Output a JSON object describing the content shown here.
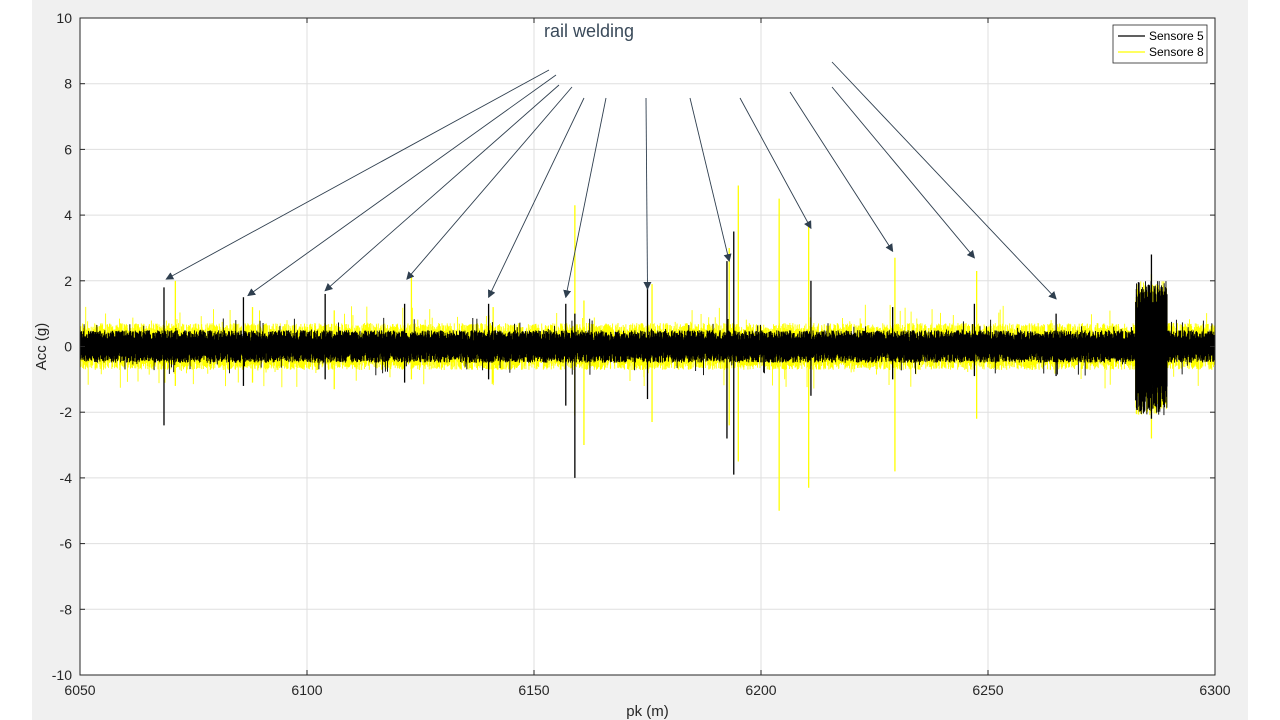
{
  "chart_data": {
    "type": "line",
    "title": "",
    "xlabel": "pk (m)",
    "ylabel": "Acc (g)",
    "xlim": [
      6050,
      6300
    ],
    "ylim": [
      -10,
      10
    ],
    "xticks": [
      6050,
      6100,
      6150,
      6200,
      6250,
      6300
    ],
    "yticks": [
      -10,
      -8,
      -6,
      -4,
      -2,
      0,
      2,
      4,
      6,
      8,
      10
    ],
    "grid": true,
    "legend_position": "top-right",
    "annotation": {
      "text": "rail welding",
      "arrow_targets_x": [
        6069,
        6087,
        6104,
        6122,
        6140,
        6157,
        6175,
        6193,
        6211,
        6229,
        6247,
        6265
      ]
    },
    "series": [
      {
        "name": "Sensore 5",
        "color": "#000000",
        "noise_amplitude": 0.45,
        "spikes": [
          {
            "x": 6068.5,
            "high": 1.8,
            "low": -2.4
          },
          {
            "x": 6086,
            "high": 1.5,
            "low": -1.2
          },
          {
            "x": 6104,
            "high": 1.6,
            "low": -1.0
          },
          {
            "x": 6121.5,
            "high": 1.3,
            "low": -1.1
          },
          {
            "x": 6140,
            "high": 1.3,
            "low": -1.0
          },
          {
            "x": 6157,
            "high": 1.3,
            "low": -1.8
          },
          {
            "x": 6159,
            "high": 1.0,
            "low": -4.0
          },
          {
            "x": 6175,
            "high": 1.8,
            "low": -1.6
          },
          {
            "x": 6192.5,
            "high": 2.6,
            "low": -2.8
          },
          {
            "x": 6194,
            "high": 3.5,
            "low": -3.9
          },
          {
            "x": 6211,
            "high": 2.0,
            "low": -1.5
          },
          {
            "x": 6229,
            "high": 1.2,
            "low": -1.0
          },
          {
            "x": 6247,
            "high": 1.3,
            "low": -0.9
          },
          {
            "x": 6265,
            "high": 1.0,
            "low": -0.9
          },
          {
            "x": 6286,
            "high": 2.8,
            "low": -2.2
          }
        ]
      },
      {
        "name": "Sensore 8",
        "color": "#ffff00",
        "noise_amplitude": 0.65,
        "spikes": [
          {
            "x": 6071,
            "high": 2.0,
            "low": -1.2
          },
          {
            "x": 6088,
            "high": 1.2,
            "low": -1.1
          },
          {
            "x": 6106,
            "high": 1.1,
            "low": -1.3
          },
          {
            "x": 6123,
            "high": 2.1,
            "low": -1.0
          },
          {
            "x": 6141,
            "high": 1.2,
            "low": -1.1
          },
          {
            "x": 6159,
            "high": 4.3,
            "low": -2.1
          },
          {
            "x": 6161,
            "high": 1.4,
            "low": -3.0
          },
          {
            "x": 6176,
            "high": 1.9,
            "low": -2.3
          },
          {
            "x": 6193,
            "high": 3.0,
            "low": -2.4
          },
          {
            "x": 6195,
            "high": 4.9,
            "low": -3.5
          },
          {
            "x": 6204,
            "high": 4.5,
            "low": -5.0
          },
          {
            "x": 6210.5,
            "high": 3.7,
            "low": -4.3
          },
          {
            "x": 6229.5,
            "high": 2.7,
            "low": -3.8
          },
          {
            "x": 6247.5,
            "high": 2.3,
            "low": -2.2
          },
          {
            "x": 6286,
            "high": 2.2,
            "low": -2.8
          }
        ]
      }
    ]
  }
}
